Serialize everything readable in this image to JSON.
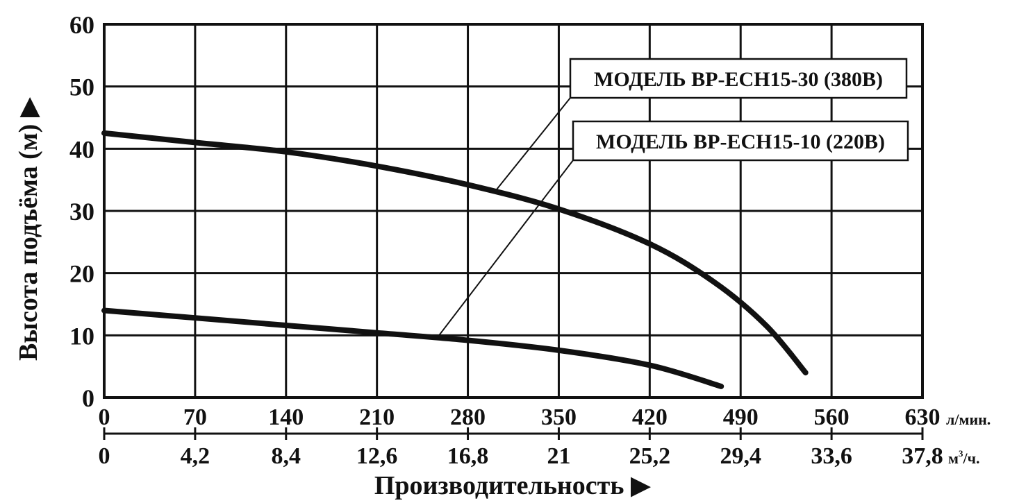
{
  "chart_data": {
    "type": "line",
    "title": "",
    "ylabel": "Высота подъёма (м) ▶",
    "xlabel": "Производительность ▶",
    "ylim": [
      0,
      60
    ],
    "yticks": [
      "0",
      "10",
      "20",
      "30",
      "40",
      "50",
      "60"
    ],
    "xlim": [
      0,
      630
    ],
    "x_primary": {
      "unit": "л/мин.",
      "ticks": [
        "0",
        "70",
        "140",
        "210",
        "280",
        "350",
        "420",
        "490",
        "560",
        "630"
      ]
    },
    "x_secondary": {
      "unit_base": "м",
      "unit_sup": "3",
      "unit_tail": "/ч.",
      "ticks": [
        "0",
        "4,2",
        "8,4",
        "12,6",
        "16,8",
        "21",
        "25,2",
        "29,4",
        "33,6",
        "37,8"
      ]
    },
    "grid": true,
    "series": [
      {
        "name": "МОДЕЛЬ BP-ECH15-30 (380В)",
        "x": [
          0,
          70,
          140,
          210,
          280,
          350,
          420,
          470,
          510,
          540
        ],
        "y": [
          42.5,
          41,
          39.5,
          37.2,
          34.2,
          30.3,
          24.7,
          18.5,
          11.5,
          4
        ]
      },
      {
        "name": "МОДЕЛЬ BP-ECH15-10 (220В)",
        "x": [
          0,
          70,
          140,
          210,
          280,
          350,
          420,
          475
        ],
        "y": [
          14,
          12.8,
          11.6,
          10.4,
          9.2,
          7.6,
          5.2,
          1.8
        ]
      }
    ],
    "legend_position": "top-right",
    "colors": {
      "line": "#111111",
      "grid": "#111111",
      "background": "#ffffff"
    }
  }
}
